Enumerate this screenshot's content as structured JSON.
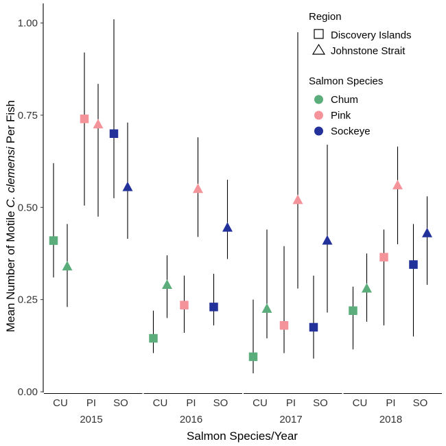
{
  "chart_data": {
    "type": "scatter",
    "ylabel_parts": [
      "Mean Number of Motile ",
      "C. clemensi",
      " Per Fish"
    ],
    "xlabel": "Salmon Species/Year",
    "ylim": [
      0,
      1.05
    ],
    "yticks": [
      0,
      0.25,
      0.5,
      0.75,
      1.0
    ],
    "ytick_labels": [
      "0.00",
      "0.25",
      "0.50",
      "0.75",
      "1.00"
    ],
    "grid": false,
    "years": [
      "2015",
      "2016",
      "2017",
      "2018"
    ],
    "categories": [
      "CU",
      "PI",
      "SO"
    ],
    "legend": {
      "position": "top-right",
      "region_title": "Region",
      "regions": [
        {
          "label": "Discovery Islands",
          "shape": "square"
        },
        {
          "label": "Johnstone Strait",
          "shape": "triangle"
        }
      ],
      "species_title": "Salmon Species",
      "species": [
        {
          "label": "Chum",
          "color": "#5BAE7C"
        },
        {
          "label": "Pink",
          "color": "#F5939A"
        },
        {
          "label": "Sockeye",
          "color": "#22329A"
        }
      ]
    },
    "points": [
      {
        "year": "2015",
        "cat": "CU",
        "region": "Discovery Islands",
        "mean": 0.41,
        "low": 0.31,
        "high": 0.62
      },
      {
        "year": "2015",
        "cat": "CU",
        "region": "Johnstone Strait",
        "mean": 0.34,
        "low": 0.23,
        "high": 0.455
      },
      {
        "year": "2015",
        "cat": "PI",
        "region": "Discovery Islands",
        "mean": 0.74,
        "low": 0.505,
        "high": 0.92
      },
      {
        "year": "2015",
        "cat": "PI",
        "region": "Johnstone Strait",
        "mean": 0.725,
        "low": 0.475,
        "high": 0.835
      },
      {
        "year": "2015",
        "cat": "SO",
        "region": "Discovery Islands",
        "mean": 0.7,
        "low": 0.525,
        "high": 1.01
      },
      {
        "year": "2015",
        "cat": "SO",
        "region": "Johnstone Strait",
        "mean": 0.555,
        "low": 0.415,
        "high": 0.73
      },
      {
        "year": "2016",
        "cat": "CU",
        "region": "Discovery Islands",
        "mean": 0.145,
        "low": 0.105,
        "high": 0.22
      },
      {
        "year": "2016",
        "cat": "CU",
        "region": "Johnstone Strait",
        "mean": 0.29,
        "low": 0.2,
        "high": 0.37
      },
      {
        "year": "2016",
        "cat": "PI",
        "region": "Discovery Islands",
        "mean": 0.235,
        "low": 0.16,
        "high": 0.315
      },
      {
        "year": "2016",
        "cat": "PI",
        "region": "Johnstone Strait",
        "mean": 0.55,
        "low": 0.42,
        "high": 0.69
      },
      {
        "year": "2016",
        "cat": "SO",
        "region": "Discovery Islands",
        "mean": 0.23,
        "low": 0.18,
        "high": 0.32
      },
      {
        "year": "2016",
        "cat": "SO",
        "region": "Johnstone Strait",
        "mean": 0.445,
        "low": 0.36,
        "high": 0.575
      },
      {
        "year": "2017",
        "cat": "CU",
        "region": "Discovery Islands",
        "mean": 0.095,
        "low": 0.05,
        "high": 0.25
      },
      {
        "year": "2017",
        "cat": "CU",
        "region": "Johnstone Strait",
        "mean": 0.225,
        "low": 0.145,
        "high": 0.44
      },
      {
        "year": "2017",
        "cat": "PI",
        "region": "Discovery Islands",
        "mean": 0.18,
        "low": 0.105,
        "high": 0.395
      },
      {
        "year": "2017",
        "cat": "PI",
        "region": "Johnstone Strait",
        "mean": 0.52,
        "low": 0.28,
        "high": 0.975
      },
      {
        "year": "2017",
        "cat": "SO",
        "region": "Discovery Islands",
        "mean": 0.175,
        "low": 0.09,
        "high": 0.315
      },
      {
        "year": "2017",
        "cat": "SO",
        "region": "Johnstone Strait",
        "mean": 0.41,
        "low": 0.215,
        "high": 0.67
      },
      {
        "year": "2018",
        "cat": "CU",
        "region": "Discovery Islands",
        "mean": 0.22,
        "low": 0.115,
        "high": 0.285
      },
      {
        "year": "2018",
        "cat": "CU",
        "region": "Johnstone Strait",
        "mean": 0.28,
        "low": 0.19,
        "high": 0.375
      },
      {
        "year": "2018",
        "cat": "PI",
        "region": "Discovery Islands",
        "mean": 0.365,
        "low": 0.18,
        "high": 0.44
      },
      {
        "year": "2018",
        "cat": "PI",
        "region": "Johnstone Strait",
        "mean": 0.56,
        "low": 0.4,
        "high": 0.665
      },
      {
        "year": "2018",
        "cat": "SO",
        "region": "Discovery Islands",
        "mean": 0.345,
        "low": 0.15,
        "high": 0.455
      },
      {
        "year": "2018",
        "cat": "SO",
        "region": "Johnstone Strait",
        "mean": 0.43,
        "low": 0.29,
        "high": 0.53
      }
    ]
  }
}
